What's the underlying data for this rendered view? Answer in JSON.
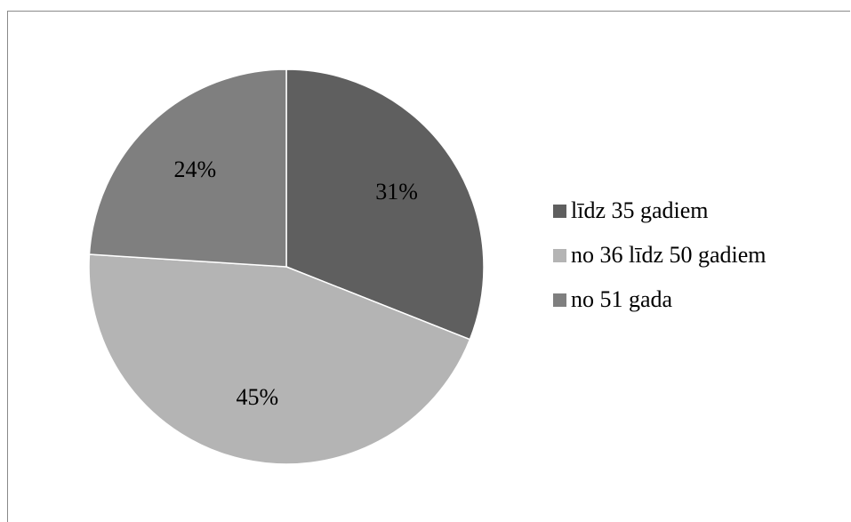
{
  "chart_data": {
    "type": "pie",
    "title": "",
    "categories": [
      "līdz 35 gadiem",
      "no 36 līdz 50 gadiem",
      "no 51 gada"
    ],
    "values": [
      31,
      45,
      24
    ],
    "value_labels": [
      "31%",
      "45%",
      "24%"
    ],
    "colors": [
      "#5f5f5f",
      "#b4b4b4",
      "#7f7f7f"
    ],
    "start_angle": "12 o'clock",
    "direction": "clockwise",
    "legend_position": "right"
  }
}
